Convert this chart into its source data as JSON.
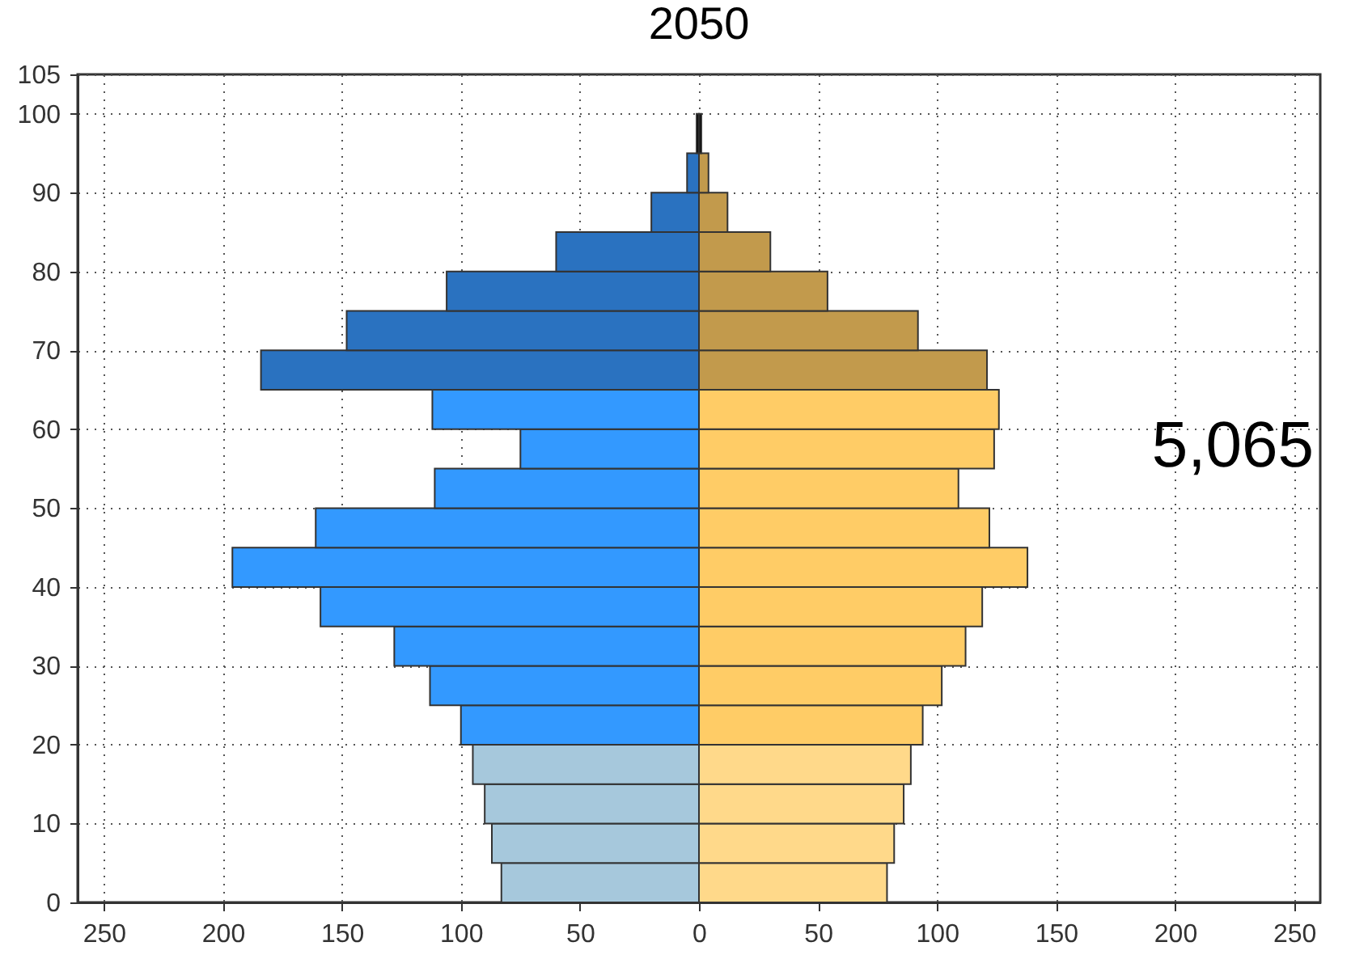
{
  "chart_data": {
    "type": "bar",
    "orientation": "horizontal",
    "title": "2050",
    "x": [
      2.5,
      7.5,
      12.5,
      17.5,
      22.5,
      27.5,
      32.5,
      37.5,
      42.5,
      47.5,
      52.5,
      57.5,
      62.5,
      67.5,
      72.5,
      77.5,
      82.5,
      87.5,
      92.5,
      97.5
    ],
    "series": [
      {
        "values": [
          -83,
          -87,
          -90,
          -95,
          -100,
          -113,
          -128,
          -159,
          -196,
          -161,
          -111,
          -75,
          -112,
          -184,
          -148,
          -106,
          -60,
          -20,
          -5,
          -1
        ],
        "colors": [
          "#a6c8dc",
          "#a6c8dc",
          "#a6c8dc",
          "#a6c8dc",
          "#3399ff",
          "#3399ff",
          "#3399ff",
          "#3399ff",
          "#3399ff",
          "#3399ff",
          "#3399ff",
          "#3399ff",
          "#3399ff",
          "#2a72c0",
          "#2a72c0",
          "#2a72c0",
          "#2a72c0",
          "#2a72c0",
          "#2a72c0",
          "#000000"
        ]
      },
      {
        "values": [
          79,
          82,
          86,
          89,
          94,
          102,
          112,
          119,
          138,
          122,
          109,
          124,
          126,
          121,
          92,
          54,
          30,
          12,
          4,
          1
        ],
        "colors": [
          "#ffd98a",
          "#ffd98a",
          "#ffd98a",
          "#ffd98a",
          "#ffcc66",
          "#ffcc66",
          "#ffcc66",
          "#ffcc66",
          "#ffcc66",
          "#ffcc66",
          "#ffcc66",
          "#ffcc66",
          "#ffcc66",
          "#c29a4c",
          "#c29a4c",
          "#c29a4c",
          "#c29a4c",
          "#c29a4c",
          "#c29a4c",
          "#000000"
        ]
      }
    ],
    "xlim": [
      -261,
      261
    ],
    "xticks": [
      {
        "value": -250,
        "label": "250"
      },
      {
        "value": -200,
        "label": "200"
      },
      {
        "value": -150,
        "label": "150"
      },
      {
        "value": -100,
        "label": "100"
      },
      {
        "value": -50,
        "label": "50"
      },
      0,
      50,
      100,
      150,
      200,
      250
    ],
    "ylim": [
      0,
      105
    ],
    "yticks": [
      0,
      10,
      20,
      30,
      40,
      50,
      60,
      70,
      80,
      90,
      100,
      105
    ],
    "grid": true,
    "stacked": true,
    "annotations": [
      "5,065"
    ]
  }
}
